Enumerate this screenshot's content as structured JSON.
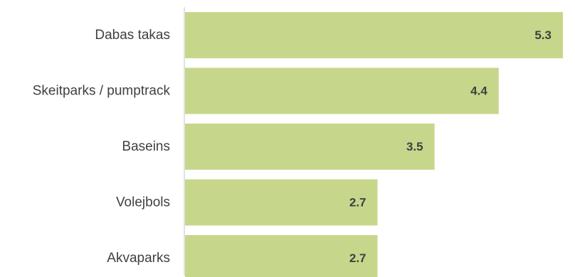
{
  "chart_data": {
    "type": "bar",
    "orientation": "horizontal",
    "categories": [
      "Dabas takas",
      "Skeitparks / pumptrack",
      "Baseins",
      "Volejbols",
      "Akvaparks"
    ],
    "values": [
      5.3,
      4.4,
      3.5,
      2.7,
      2.7
    ],
    "value_labels": [
      "5.3",
      "4.4",
      "3.5",
      "2.7",
      "2.7"
    ],
    "title": "",
    "xlabel": "",
    "ylabel": "",
    "xlim": [
      0,
      5.4
    ],
    "grid": false,
    "legend": "none",
    "colors": {
      "bar": "#c6d78b",
      "axis": "#d9d9d9",
      "text": "#404040"
    }
  }
}
